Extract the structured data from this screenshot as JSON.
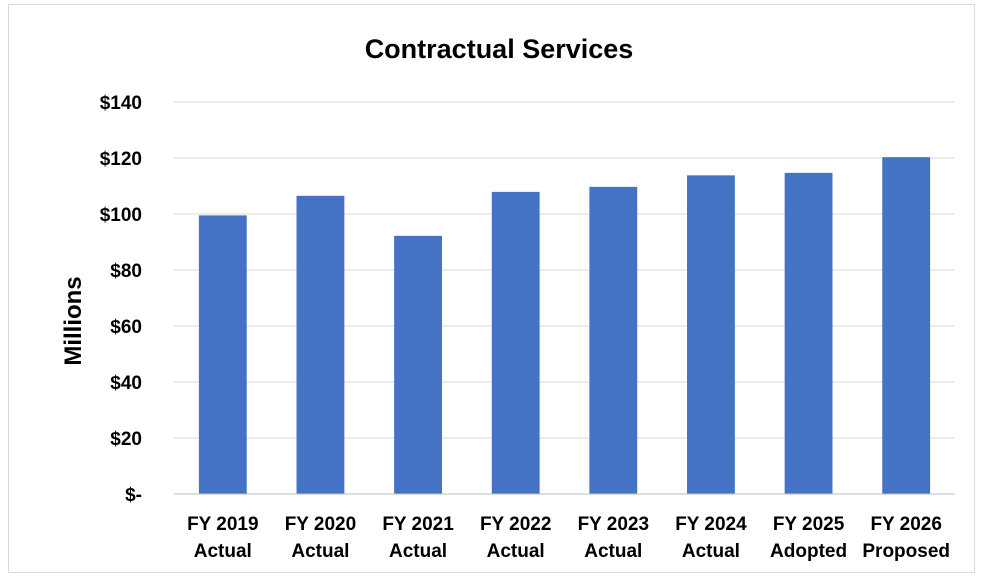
{
  "chart_data": {
    "type": "bar",
    "title": "Contractual Services",
    "ylabel": "Millions",
    "xlabel": "",
    "categories": [
      [
        "FY 2019",
        "Actual"
      ],
      [
        "FY 2020",
        "Actual"
      ],
      [
        "FY 2021",
        "Actual"
      ],
      [
        "FY 2022",
        "Actual"
      ],
      [
        "FY 2023",
        "Actual"
      ],
      [
        "FY 2024",
        "Actual"
      ],
      [
        "FY 2025",
        "Adopted"
      ],
      [
        "FY 2026",
        "Proposed"
      ]
    ],
    "values": [
      99.5,
      106.5,
      92.2,
      107.9,
      109.7,
      113.8,
      114.7,
      120.3
    ],
    "ylim": [
      0,
      140
    ],
    "yticks": [
      0,
      20,
      40,
      60,
      80,
      100,
      120,
      140
    ],
    "ytick_labels": [
      "$-",
      "$20",
      "$40",
      "$60",
      "$80",
      "$100",
      "$120",
      "$140"
    ],
    "grid": true,
    "colors": {
      "bar": "#4472c4"
    }
  }
}
